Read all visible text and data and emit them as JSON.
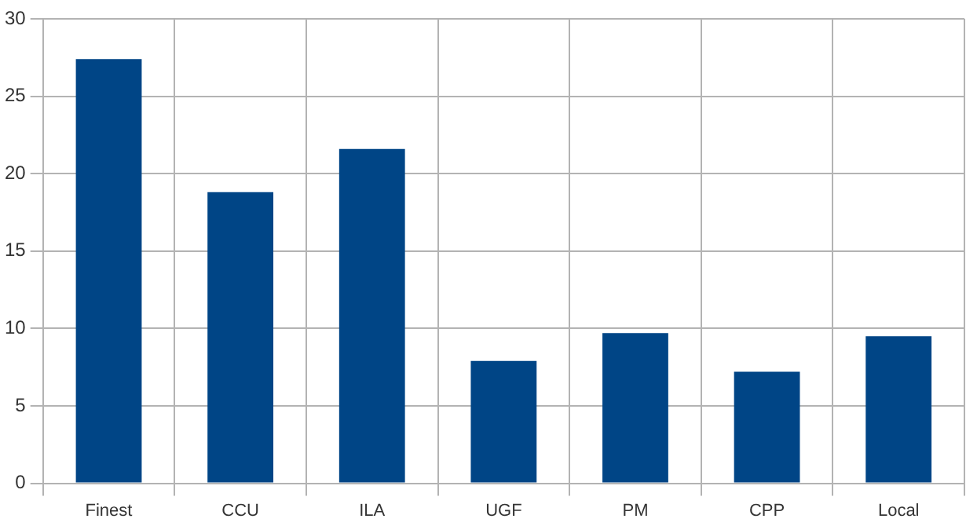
{
  "chart_data": {
    "type": "bar",
    "categories": [
      "Finest",
      "CCU",
      "ILA",
      "UGF",
      "PM",
      "CPP",
      "Local"
    ],
    "values": [
      27.4,
      18.8,
      21.6,
      7.9,
      9.7,
      7.2,
      9.5
    ],
    "color": "#004586",
    "ylim": [
      0,
      30
    ],
    "yticks": [
      0,
      5,
      10,
      15,
      20,
      25,
      30
    ],
    "grid": true,
    "legend": false
  }
}
